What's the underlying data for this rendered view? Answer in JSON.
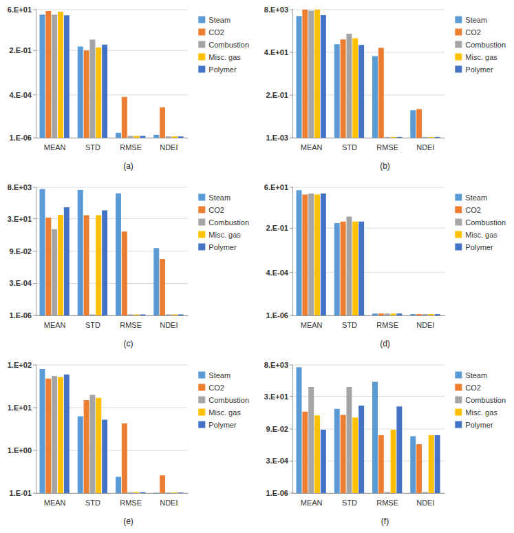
{
  "chart_data": [
    {
      "type": "bar",
      "title": "(a)",
      "categories": [
        "MEAN",
        "STD",
        "RMSE",
        "NDEI"
      ],
      "series": [
        {
          "name": "Steam",
          "color": "#5B9BD5",
          "values": [
            30,
            0.35,
            2e-06,
            1.5e-06
          ]
        },
        {
          "name": "CO2",
          "color": "#ED7D31",
          "values": [
            50,
            0.2,
            0.0003,
            7e-05
          ]
        },
        {
          "name": "Combustion",
          "color": "#A5A5A5",
          "values": [
            30,
            0.9,
            1.3e-06,
            1.2e-06
          ]
        },
        {
          "name": "Misc. gas",
          "color": "#FFC000",
          "values": [
            45,
            0.3,
            1.3e-06,
            1.2e-06
          ]
        },
        {
          "name": "Polymer",
          "color": "#4472C4",
          "values": [
            27,
            0.45,
            1.3e-06,
            1.2e-06
          ]
        }
      ],
      "ylim": [
        1e-06,
        60
      ],
      "yticks": [
        {
          "value": 1e-06,
          "label": "1.E-06"
        },
        {
          "value": 0.0004,
          "label": "4.E-04"
        },
        {
          "value": 0.2,
          "label": "2.E-01"
        },
        {
          "value": 60,
          "label": "6.E+01"
        }
      ],
      "log": "y",
      "grid": true,
      "legend": "upper right"
    },
    {
      "type": "bar",
      "title": "(b)",
      "categories": [
        "MEAN",
        "STD",
        "RMSE",
        "NDEI"
      ],
      "series": [
        {
          "name": "Steam",
          "color": "#5B9BD5",
          "values": [
            3600,
            110,
            25,
            0.03
          ]
        },
        {
          "name": "CO2",
          "color": "#ED7D31",
          "values": [
            8000,
            200,
            70,
            0.035
          ]
        },
        {
          "name": "Combustion",
          "color": "#A5A5A5",
          "values": [
            7000,
            400,
            0.0011,
            0.0011
          ]
        },
        {
          "name": "Misc. gas",
          "color": "#FFC000",
          "values": [
            8000,
            230,
            0.0011,
            0.0011
          ]
        },
        {
          "name": "Polymer",
          "color": "#4472C4",
          "values": [
            4000,
            100,
            0.0011,
            0.0011
          ]
        }
      ],
      "ylim": [
        0.001,
        8000
      ],
      "yticks": [
        {
          "value": 0.001,
          "label": "1.E-03"
        },
        {
          "value": 0.2,
          "label": "2.E-01"
        },
        {
          "value": 40,
          "label": "4.E+01"
        },
        {
          "value": 8000,
          "label": "8.E+03"
        }
      ],
      "log": "y",
      "grid": true,
      "legend": "upper right"
    },
    {
      "type": "bar",
      "title": "(c)",
      "categories": [
        "MEAN",
        "STD",
        "RMSE",
        "NDEI"
      ],
      "series": [
        {
          "name": "Steam",
          "color": "#5B9BD5",
          "values": [
            5900,
            5000,
            2700,
            0.16
          ]
        },
        {
          "name": "CO2",
          "color": "#ED7D31",
          "values": [
            36,
            56,
            3,
            0.023
          ]
        },
        {
          "name": "Combustion",
          "color": "#A5A5A5",
          "values": [
            4.7,
            1.2e-06,
            1.2e-06,
            1.2e-06
          ]
        },
        {
          "name": "Misc. gas",
          "color": "#FFC000",
          "values": [
            60,
            56,
            1.2e-06,
            1.2e-06
          ]
        },
        {
          "name": "Polymer",
          "color": "#4472C4",
          "values": [
            230,
            130,
            1.2e-06,
            1.2e-06
          ]
        }
      ],
      "ylim": [
        1e-06,
        8000
      ],
      "yticks": [
        {
          "value": 1e-06,
          "label": "1.E-06"
        },
        {
          "value": 0.0003,
          "label": "3.E-04"
        },
        {
          "value": 0.09,
          "label": "9.E-02"
        },
        {
          "value": 30,
          "label": "3.E+01"
        },
        {
          "value": 8000,
          "label": "8.E+03"
        }
      ],
      "log": "y",
      "grid": true,
      "legend": "upper right"
    },
    {
      "type": "bar",
      "title": "(d)",
      "categories": [
        "MEAN",
        "STD",
        "RMSE",
        "NDEI"
      ],
      "series": [
        {
          "name": "Steam",
          "color": "#5B9BD5",
          "values": [
            40,
            0.4,
            1.3e-06,
            1.2e-06
          ]
        },
        {
          "name": "CO2",
          "color": "#ED7D31",
          "values": [
            22,
            0.5,
            1.3e-06,
            1.2e-06
          ]
        },
        {
          "name": "Combustion",
          "color": "#A5A5A5",
          "values": [
            25,
            1.0,
            1.3e-06,
            1.2e-06
          ]
        },
        {
          "name": "Misc. gas",
          "color": "#FFC000",
          "values": [
            22,
            0.5,
            1.3e-06,
            1.2e-06
          ]
        },
        {
          "name": "Polymer",
          "color": "#4472C4",
          "values": [
            25,
            0.5,
            1.3e-06,
            1.2e-06
          ]
        }
      ],
      "ylim": [
        1e-06,
        60
      ],
      "yticks": [
        {
          "value": 1e-06,
          "label": "1.E-06"
        },
        {
          "value": 0.0004,
          "label": "4.E-04"
        },
        {
          "value": 0.2,
          "label": "2.E-01"
        },
        {
          "value": 60,
          "label": "6.E+01"
        }
      ],
      "log": "y",
      "grid": true,
      "legend": "upper right"
    },
    {
      "type": "bar",
      "title": "(e)",
      "categories": [
        "MEAN",
        "STD",
        "RMSE",
        "NDEI"
      ],
      "series": [
        {
          "name": "Steam",
          "color": "#5B9BD5",
          "values": [
            80,
            6.3,
            0.24,
            0.102
          ]
        },
        {
          "name": "CO2",
          "color": "#ED7D31",
          "values": [
            48,
            15,
            4.3,
            0.26
          ]
        },
        {
          "name": "Combustion",
          "color": "#A5A5A5",
          "values": [
            55,
            20,
            0.105,
            0.103
          ]
        },
        {
          "name": "Misc. gas",
          "color": "#FFC000",
          "values": [
            52,
            17,
            0.105,
            0.103
          ]
        },
        {
          "name": "Polymer",
          "color": "#4472C4",
          "values": [
            60,
            5.2,
            0.105,
            0.103
          ]
        }
      ],
      "ylim": [
        0.1,
        100
      ],
      "yticks": [
        {
          "value": 0.1,
          "label": "1.E-01"
        },
        {
          "value": 1,
          "label": "1.E+00"
        },
        {
          "value": 10,
          "label": "1.E+01"
        },
        {
          "value": 100,
          "label": "1.E+02"
        }
      ],
      "log": "y",
      "grid": true,
      "legend": "upper right"
    },
    {
      "type": "bar",
      "title": "(f)",
      "categories": [
        "MEAN",
        "STD",
        "RMSE",
        "NDEI"
      ],
      "series": [
        {
          "name": "Steam",
          "color": "#5B9BD5",
          "values": [
            5300,
            3.2,
            400,
            0.025
          ]
        },
        {
          "name": "CO2",
          "color": "#ED7D31",
          "values": [
            2,
            1.1,
            0.03,
            0.006
          ]
        },
        {
          "name": "Combustion",
          "color": "#A5A5A5",
          "values": [
            160,
            160,
            1.2e-06,
            1.2e-06
          ]
        },
        {
          "name": "Misc. gas",
          "color": "#FFC000",
          "values": [
            1.0,
            0.7,
            0.08,
            0.03
          ]
        },
        {
          "name": "Polymer",
          "color": "#4472C4",
          "values": [
            0.08,
            5.7,
            5,
            0.03
          ]
        }
      ],
      "ylim": [
        1e-06,
        8000
      ],
      "yticks": [
        {
          "value": 1e-06,
          "label": "1.E-06"
        },
        {
          "value": 0.0003,
          "label": "3.E-04"
        },
        {
          "value": 0.09,
          "label": "9.E-02"
        },
        {
          "value": 30,
          "label": "3.E+01"
        },
        {
          "value": 8000,
          "label": "8.E+03"
        }
      ],
      "log": "y",
      "grid": true,
      "legend": "upper right"
    }
  ]
}
